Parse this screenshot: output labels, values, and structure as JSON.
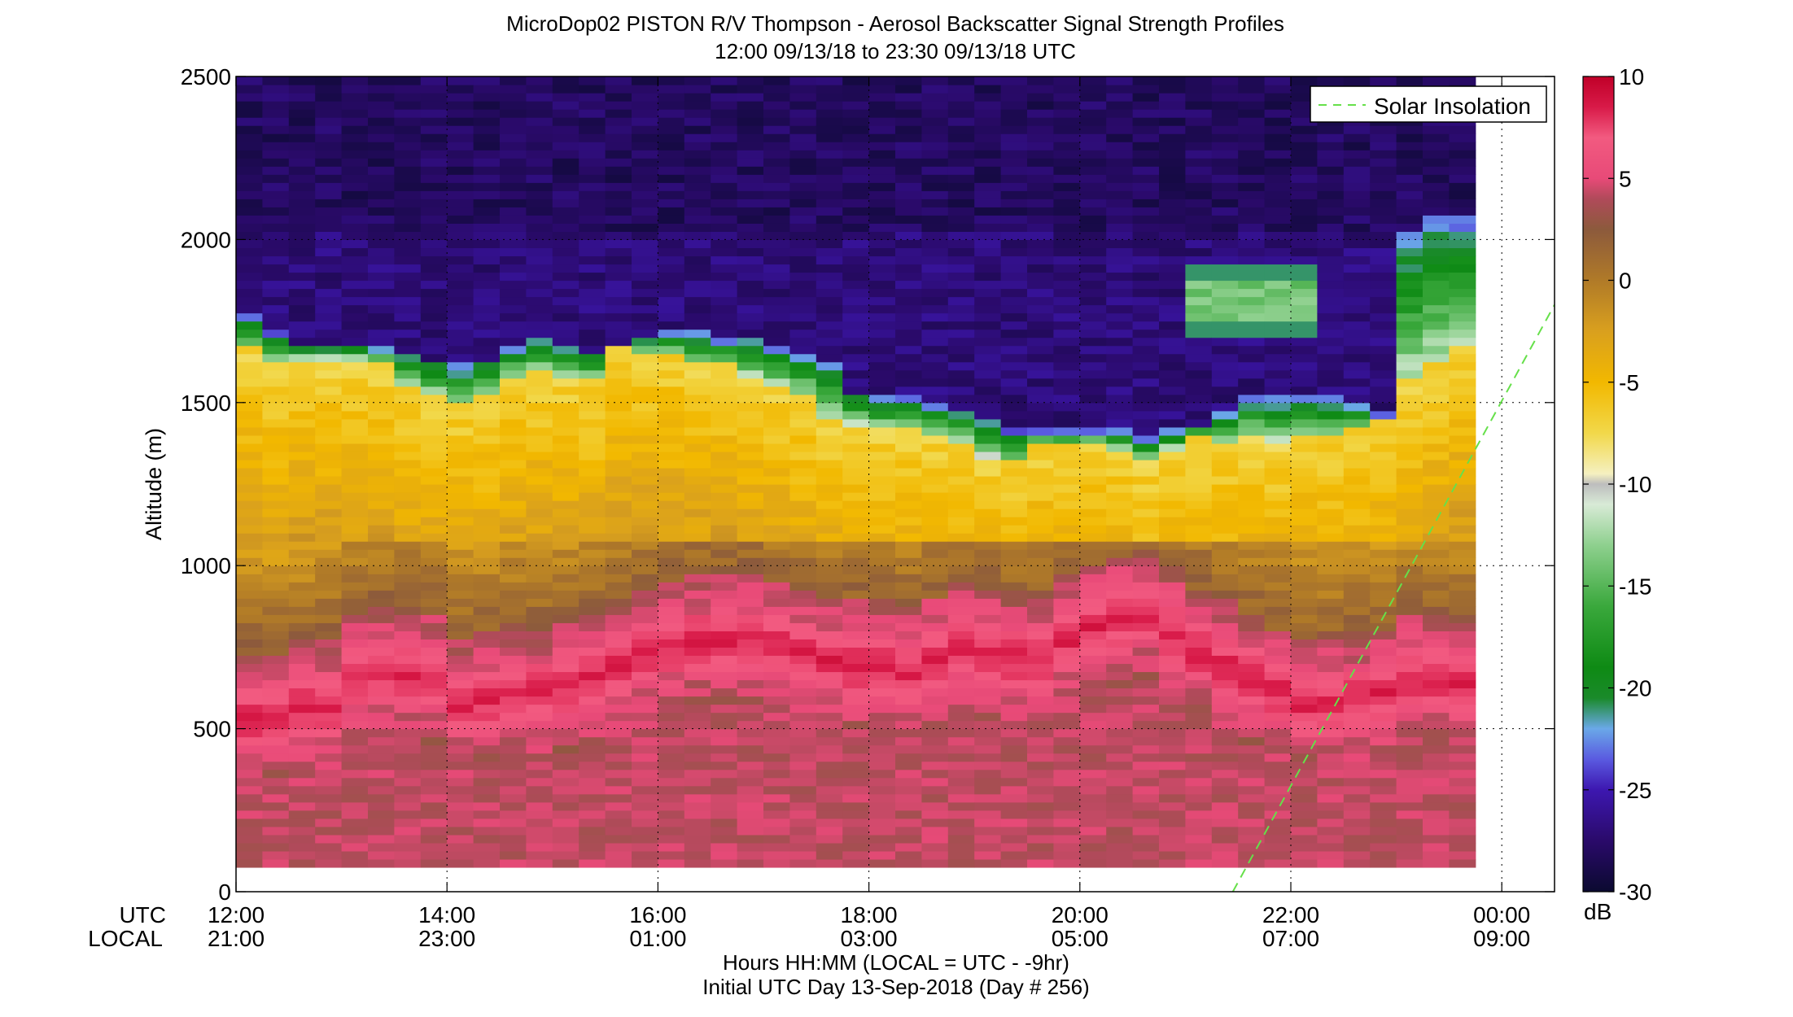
{
  "chart_data": {
    "type": "heatmap",
    "title": "MicroDop02 PISTON R/V Thompson - Aerosol Backscatter Signal Strength Profiles",
    "subtitle": "12:00 09/13/18 to 23:30 09/13/18  UTC",
    "ylabel": "Altitude (m)",
    "ylim": [
      0,
      2500
    ],
    "yticks": [
      0,
      500,
      1000,
      1500,
      2000,
      2500
    ],
    "xlim": [
      12,
      24.5
    ],
    "xticks": [
      12,
      14,
      16,
      18,
      20,
      22,
      24
    ],
    "x_row_labels": [
      "UTC",
      "LOCAL"
    ],
    "xtick_utc_labels": [
      "12:00",
      "14:00",
      "16:00",
      "18:00",
      "20:00",
      "22:00",
      "00:00"
    ],
    "xtick_local_labels": [
      "21:00",
      "23:00",
      "01:00",
      "03:00",
      "05:00",
      "07:00",
      "09:00"
    ],
    "xlabel": "Hours HH:MM  (LOCAL = UTC - -9hr)",
    "footer": "Initial UTC Day 13-Sep-2018 (Day # 256)",
    "colorbar": {
      "unit": "dB",
      "range": [
        -30,
        10
      ],
      "ticks": [
        10,
        5,
        0,
        -5,
        -10,
        -15,
        -20,
        -25,
        -30
      ],
      "colors": [
        [
          -30,
          "#0b0a30"
        ],
        [
          -27.5,
          "#2a0a6a"
        ],
        [
          -25,
          "#3d17b0"
        ],
        [
          -23.5,
          "#5a5ae0"
        ],
        [
          -22,
          "#6aa8e8"
        ],
        [
          -20.5,
          "#1a8a2a"
        ],
        [
          -19,
          "#0e8a14"
        ],
        [
          -16,
          "#3aa83c"
        ],
        [
          -13,
          "#8ed08e"
        ],
        [
          -11,
          "#d8ead6"
        ],
        [
          -10,
          "#bdbdbd"
        ],
        [
          -9.5,
          "#f5f0c0"
        ],
        [
          -7.5,
          "#f2d84a"
        ],
        [
          -5,
          "#f2b800"
        ],
        [
          -2.5,
          "#d9a01e"
        ],
        [
          0,
          "#b07a28"
        ],
        [
          2.5,
          "#8c5a3c"
        ],
        [
          4,
          "#b04a5a"
        ],
        [
          5,
          "#e84a78"
        ],
        [
          7,
          "#f25a80"
        ],
        [
          8.5,
          "#d81a48"
        ],
        [
          10,
          "#c00028"
        ]
      ]
    },
    "data": {
      "time_start_utc": 12.0,
      "time_step_hr": 0.25,
      "altitude_start_m": 75,
      "altitude_step_m": 25,
      "altitude_end_m": 2500,
      "top_data_altitude_m": [
        1750,
        1700,
        1660,
        1660,
        1660,
        1660,
        1640,
        1620,
        1600,
        1620,
        1660,
        1680,
        1660,
        1640,
        1660,
        1680,
        1700,
        1700,
        1680,
        1680,
        1660,
        1640,
        1600,
        1520,
        1500,
        1500,
        1480,
        1460,
        1440,
        1400,
        1400,
        1400,
        1400,
        1400,
        1380,
        1400,
        1420,
        1460,
        1500,
        1500,
        1500,
        1500,
        1480,
        1450,
        2000,
        2050,
        2050
      ],
      "boundary_layer_top_m": [
        1650,
        1600,
        1620,
        1620,
        1620,
        1600,
        1540,
        1500,
        1480,
        1500,
        1560,
        1580,
        1560,
        1560,
        1660,
        1640,
        1640,
        1600,
        1600,
        1560,
        1540,
        1500,
        1440,
        1420,
        1400,
        1400,
        1380,
        1360,
        1320,
        1300,
        1360,
        1360,
        1360,
        1340,
        1300,
        1340,
        1380,
        1360,
        1380,
        1360,
        1380,
        1380,
        1400,
        1440,
        1550,
        1600,
        1650
      ],
      "pink_layer_center_m": [
        520,
        520,
        560,
        560,
        640,
        660,
        660,
        640,
        560,
        580,
        600,
        600,
        620,
        640,
        680,
        720,
        740,
        760,
        760,
        760,
        740,
        720,
        700,
        680,
        680,
        660,
        700,
        740,
        720,
        700,
        700,
        760,
        800,
        820,
        840,
        780,
        720,
        680,
        640,
        600,
        560,
        560,
        580,
        600,
        640,
        640,
        620
      ]
    },
    "solar_insolation": {
      "label": "Solar Insolation",
      "points": [
        [
          21.45,
          0
        ],
        [
          24.5,
          1800
        ]
      ],
      "color": "#66e04a",
      "legend_position": "top-right"
    },
    "high_cloud_layer": {
      "time_start_utc": 21.0,
      "time_end_utc": 22.25,
      "altitude_bottom_m": 1700,
      "altitude_top_m": 1900
    },
    "grid": "dotted"
  }
}
